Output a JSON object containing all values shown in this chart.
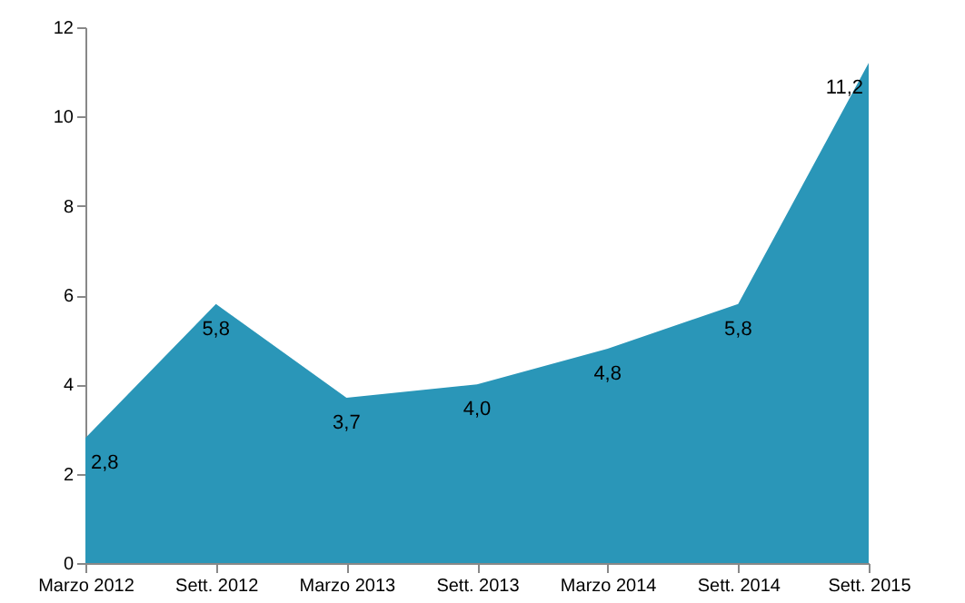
{
  "chart_data": {
    "type": "area",
    "categories": [
      "Marzo 2012",
      "Sett. 2012",
      "Marzo 2013",
      "Sett. 2013",
      "Marzo 2014",
      "Sett. 2014",
      "Sett. 2015"
    ],
    "values": [
      2.8,
      5.8,
      3.7,
      4.0,
      4.8,
      5.8,
      11.2
    ],
    "value_labels": [
      "2,8",
      "5,8",
      "3,7",
      "4,0",
      "4,8",
      "5,8",
      "11,2"
    ],
    "color": "#2a96b8",
    "ylim": [
      0,
      12
    ],
    "yticks": [
      0,
      2,
      4,
      6,
      8,
      10,
      12
    ],
    "grid": false
  }
}
